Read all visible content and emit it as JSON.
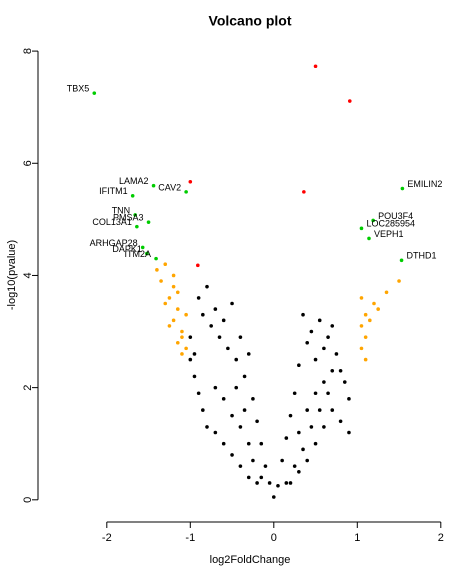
{
  "chart_data": {
    "type": "scatter",
    "title": "Volcano plot",
    "x_label": "log2FoldChange",
    "y_label": "-log10(pvalue)",
    "xlim": [
      -2.8,
      2.2
    ],
    "ylim": [
      -0.36,
      8.18
    ],
    "xticks": [
      -2,
      -1,
      0,
      1,
      2
    ],
    "yticks": [
      0,
      2,
      4,
      6,
      8
    ],
    "series": [
      {
        "color": "#000000",
        "x": [
          -0.9,
          -0.85,
          -0.8,
          -0.75,
          -0.7,
          -0.65,
          -0.6,
          -0.55,
          -0.5,
          -0.45,
          -0.4,
          -0.35,
          -0.3,
          -0.25,
          -0.2,
          -0.15,
          -0.1,
          -0.05,
          0,
          0.05,
          0.1,
          0.15,
          0.2,
          0.25,
          0.3,
          0.35,
          0.4,
          0.45,
          0.5,
          0.55,
          0.6,
          0.65,
          0.7,
          0.75,
          0.8,
          0.85,
          0.9,
          -1.0,
          -0.95,
          -0.9,
          -0.85,
          -0.8,
          -0.7,
          -0.6,
          -0.5,
          -0.4,
          -0.3,
          -0.2,
          -0.6,
          -0.5,
          -0.4,
          -0.3,
          -0.7,
          -0.45,
          -0.35,
          0.2,
          0.3,
          0.4,
          0.5,
          0.6,
          0.7,
          0.8,
          0.3,
          0.4,
          0.5,
          0.6,
          0.7,
          0.35,
          0.45,
          0.55,
          0.65,
          0.9,
          0.25,
          -0.25,
          -0.15,
          0.15,
          -1.0,
          -0.95
        ],
        "values": [
          3.6,
          3.3,
          3.8,
          3.1,
          3.4,
          2.9,
          3.2,
          2.7,
          3.5,
          2.5,
          2.9,
          2.2,
          2.6,
          1.8,
          1.4,
          1.0,
          0.6,
          0.3,
          0.05,
          0.25,
          0.7,
          1.1,
          1.5,
          1.9,
          2.4,
          3.3,
          2.8,
          3.0,
          2.5,
          3.2,
          2.7,
          2.9,
          3.1,
          2.6,
          2.3,
          2.1,
          1.8,
          2.5,
          2.2,
          1.9,
          1.6,
          1.3,
          1.2,
          1.0,
          0.8,
          0.6,
          0.4,
          0.3,
          1.8,
          1.5,
          1.3,
          1.0,
          2.0,
          2.0,
          1.6,
          0.3,
          0.5,
          0.7,
          1.0,
          1.3,
          1.6,
          1.4,
          1.2,
          1.6,
          1.9,
          2.1,
          2.3,
          0.9,
          1.3,
          1.6,
          1.9,
          1.2,
          0.6,
          0.7,
          0.4,
          0.3,
          2.9,
          2.6
        ]
      },
      {
        "color": "#ffa500",
        "x": [
          -1.1,
          -1.15,
          -1.1,
          -1.2,
          -1.15,
          -1.25,
          -1.2,
          -1.3,
          -1.35,
          -1.2,
          -1.05,
          -1.1,
          -1.25,
          -1.4,
          -1.3,
          -1.05,
          -1.15,
          1.05,
          1.1,
          1.05,
          1.1,
          1.2,
          1.25,
          1.05,
          1.15,
          1.5,
          1.35,
          1.1
        ],
        "values": [
          2.6,
          2.8,
          3.0,
          3.2,
          3.4,
          3.6,
          3.8,
          3.5,
          3.9,
          4.0,
          2.7,
          2.9,
          3.1,
          4.1,
          4.2,
          3.3,
          3.7,
          2.7,
          2.9,
          3.1,
          3.3,
          3.5,
          3.4,
          3.6,
          3.2,
          3.9,
          3.7,
          2.5
        ]
      },
      {
        "color": "#00cc00",
        "x": [
          -2.15,
          -1.44,
          -1.05,
          -1.69,
          -1.66,
          -1.64,
          -1.5,
          -1.57,
          -1.52,
          -1.41,
          1.54,
          1.19,
          1.05,
          1.14,
          1.53
        ],
        "values": [
          7.25,
          5.6,
          5.49,
          5.42,
          5.08,
          4.87,
          4.95,
          4.5,
          4.39,
          4.3,
          5.55,
          4.98,
          4.84,
          4.66,
          4.27
        ],
        "labels": [
          "TBX5",
          "LAMA2",
          "CAV2",
          "IFITM1",
          "TNN",
          "COL13A1",
          "PMSA3",
          "ARHGAP28",
          "DAPK1",
          "ITM2A",
          "EMILIN2",
          "POU3F4",
          "LOC285954",
          "VEPH1",
          "DTHD1"
        ]
      },
      {
        "color": "#ff0000",
        "x": [
          0.5,
          0.91,
          -1.0,
          0.36,
          -0.91
        ],
        "values": [
          7.73,
          7.11,
          5.67,
          5.49,
          4.18
        ]
      }
    ]
  }
}
